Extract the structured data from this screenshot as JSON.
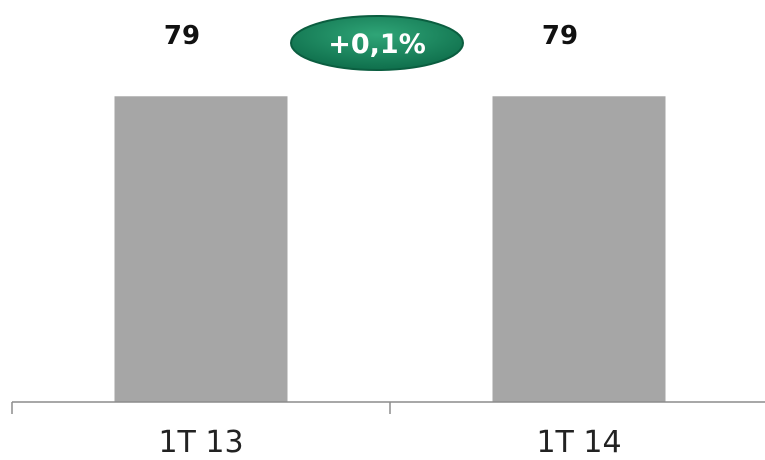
{
  "chart_data": {
    "type": "bar",
    "categories": [
      "1T 13",
      "1T 14"
    ],
    "values": [
      79,
      79
    ],
    "data_labels": [
      "79",
      "79"
    ],
    "ylim": [
      0,
      100
    ],
    "grid": false,
    "legend": "none",
    "bar_color": "#a6a6a6",
    "axis_color": "#8c8c8c",
    "annotation": {
      "text": "+0,1%",
      "fill_color": "#117a56",
      "border_color": "#0b5e40"
    }
  }
}
